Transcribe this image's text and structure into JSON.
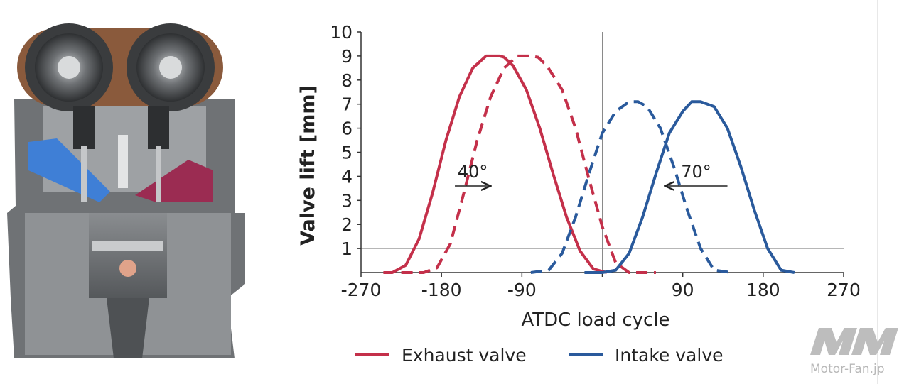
{
  "watermark": {
    "logo_text": "Motor-Fan.jp"
  },
  "annotations": [
    {
      "label": "40°",
      "from_x": -165,
      "to_x": -125,
      "y": 3.6
    },
    {
      "label": "70°",
      "from_x": 140,
      "to_x": 70,
      "y": 3.6
    }
  ],
  "colors": {
    "exhaust": "#c4304a",
    "intake": "#2a5a9c"
  },
  "chart_data": {
    "type": "line",
    "xlabel": "ATDC load cycle",
    "ylabel": "Valve lift [mm]",
    "xlim": [
      -270,
      270
    ],
    "ylim": [
      0,
      10
    ],
    "xticks": [
      "-270",
      "-180",
      "-90",
      "0",
      "90",
      "180",
      "270"
    ],
    "xtick_values": [
      -270,
      -180,
      -90,
      0,
      90,
      180,
      270
    ],
    "yticks": [
      "1",
      "2",
      "3",
      "4",
      "5",
      "6",
      "7",
      "8",
      "9",
      "10"
    ],
    "ytick_values": [
      1,
      2,
      3,
      4,
      5,
      6,
      7,
      8,
      9,
      10
    ],
    "reference_lines": {
      "vertical_x": 0,
      "horizontal_y": 1
    },
    "legend_position": "bottom",
    "series": [
      {
        "name": "Exhaust valve",
        "style": "solid",
        "color": "#c4304a",
        "x": [
          -245,
          -235,
          -220,
          -205,
          -190,
          -175,
          -160,
          -145,
          -130,
          -115,
          -110,
          -100,
          -85,
          -70,
          -55,
          -40,
          -25,
          -10,
          5
        ],
        "y": [
          0,
          0,
          0.3,
          1.4,
          3.3,
          5.5,
          7.3,
          8.5,
          9.0,
          9.0,
          8.95,
          8.6,
          7.6,
          6.0,
          4.1,
          2.3,
          0.9,
          0.15,
          0
        ]
      },
      {
        "name": "Exhaust valve",
        "style": "dashed",
        "color": "#c4304a",
        "x": [
          -225,
          -200,
          -185,
          -170,
          -155,
          -140,
          -125,
          -110,
          -95,
          -80,
          -72,
          -62,
          -45,
          -30,
          -15,
          0,
          15,
          30,
          60
        ],
        "y": [
          0,
          0,
          0.2,
          1.2,
          3.3,
          5.5,
          7.3,
          8.5,
          9.0,
          9.0,
          8.95,
          8.6,
          7.6,
          6.0,
          3.9,
          1.9,
          0.4,
          0,
          0
        ]
      },
      {
        "name": "Intake valve",
        "style": "dashed",
        "color": "#2a5a9c",
        "x": [
          -80,
          -60,
          -45,
          -30,
          -15,
          0,
          15,
          30,
          40,
          50,
          65,
          80,
          95,
          110,
          125,
          145
        ],
        "y": [
          0,
          0.1,
          0.8,
          2.3,
          4.1,
          5.8,
          6.7,
          7.1,
          7.1,
          6.9,
          6.0,
          4.4,
          2.6,
          1.0,
          0.1,
          0
        ]
      },
      {
        "name": "Intake valve",
        "style": "solid",
        "color": "#2a5a9c",
        "x": [
          -20,
          0,
          15,
          30,
          45,
          60,
          75,
          90,
          100,
          110,
          125,
          140,
          155,
          170,
          185,
          200,
          215
        ],
        "y": [
          0,
          0,
          0.1,
          0.8,
          2.3,
          4.1,
          5.8,
          6.7,
          7.1,
          7.1,
          6.9,
          6.0,
          4.4,
          2.6,
          1.0,
          0.1,
          0
        ]
      }
    ],
    "legend": [
      {
        "label": "Exhaust valve",
        "color": "#c4304a"
      },
      {
        "label": "Intake valve",
        "color": "#2a5a9c"
      }
    ]
  }
}
